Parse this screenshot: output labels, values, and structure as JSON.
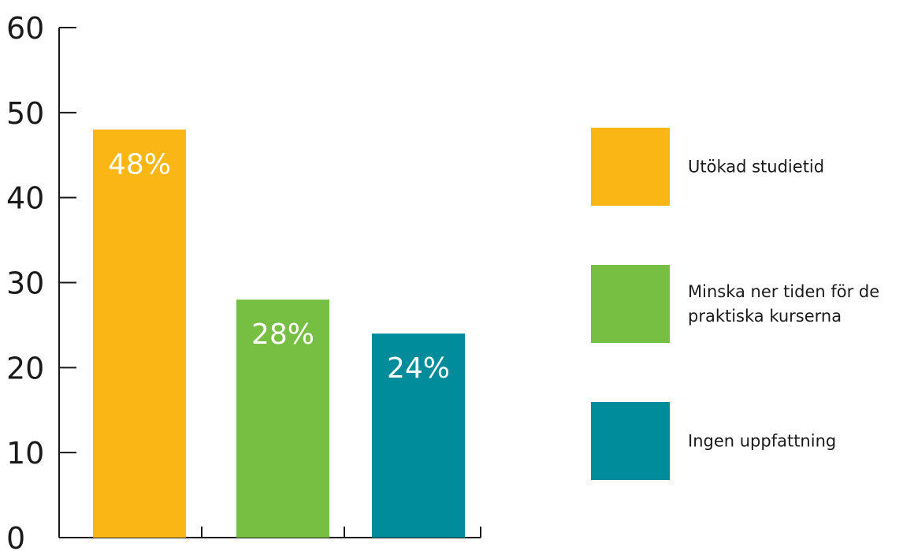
{
  "chart_data": {
    "type": "bar",
    "categories": [
      "Utökad studietid",
      "Minska ner tiden för de praktiska kurserna",
      "Ingen uppfattning"
    ],
    "values": [
      48,
      28,
      24
    ],
    "data_labels": [
      "48%",
      "28%",
      "24%"
    ],
    "colors": [
      "#fab614",
      "#77bf43",
      "#008c9b"
    ],
    "ylim": [
      0,
      60
    ],
    "yticks": [
      0,
      10,
      20,
      30,
      40,
      50,
      60
    ],
    "grid": false,
    "legend": {
      "placement": "right",
      "entries": [
        {
          "lines": [
            "Utökad studietid"
          ],
          "color": "#fab614"
        },
        {
          "lines": [
            "Minska ner tiden för de",
            "praktiska kurserna"
          ],
          "color": "#77bf43"
        },
        {
          "lines": [
            "Ingen uppfattning"
          ],
          "color": "#008c9b"
        }
      ]
    },
    "title": "",
    "xlabel": "",
    "ylabel": ""
  }
}
